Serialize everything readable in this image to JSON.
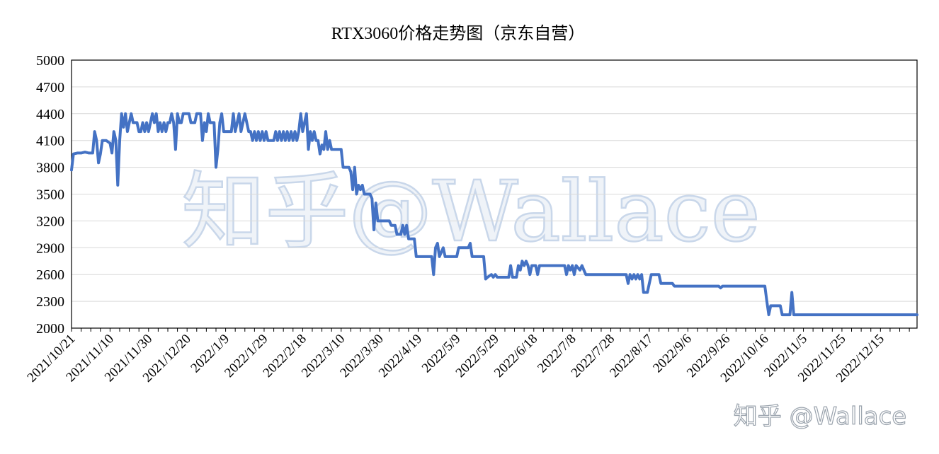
{
  "watermark": {
    "center_text": "知乎@Wallace",
    "corner_text": "知乎 @Wallace"
  },
  "colors": {
    "line": "#4472c4",
    "grid": "#d9d9d9",
    "axis": "#000000"
  },
  "chart_data": {
    "type": "line",
    "title": "RTX3060价格走势图（京东自营）",
    "xlabel": "",
    "ylabel": "",
    "ylim": [
      2000,
      5000
    ],
    "yticks": [
      2000,
      2300,
      2600,
      2900,
      3200,
      3500,
      3800,
      4100,
      4400,
      4700,
      5000
    ],
    "xlim": [
      "2021-10-21",
      "2023-01-03"
    ],
    "xticks": [
      {
        "date": "2021-10-21",
        "label": "2021/10/21"
      },
      {
        "date": "2021-11-10",
        "label": "2021/11/10"
      },
      {
        "date": "2021-11-30",
        "label": "2021/11/30"
      },
      {
        "date": "2021-12-20",
        "label": "2021/12/20"
      },
      {
        "date": "2022-01-09",
        "label": "2022/1/9"
      },
      {
        "date": "2022-01-29",
        "label": "2022/1/29"
      },
      {
        "date": "2022-02-18",
        "label": "2022/2/18"
      },
      {
        "date": "2022-03-10",
        "label": "2022/3/10"
      },
      {
        "date": "2022-03-30",
        "label": "2022/3/30"
      },
      {
        "date": "2022-04-19",
        "label": "2022/4/19"
      },
      {
        "date": "2022-05-09",
        "label": "2022/5/9"
      },
      {
        "date": "2022-05-29",
        "label": "2022/5/29"
      },
      {
        "date": "2022-06-18",
        "label": "2022/6/18"
      },
      {
        "date": "2022-07-08",
        "label": "2022/7/8"
      },
      {
        "date": "2022-07-28",
        "label": "2022/7/28"
      },
      {
        "date": "2022-08-17",
        "label": "2022/8/17"
      },
      {
        "date": "2022-09-06",
        "label": "2022/9/6"
      },
      {
        "date": "2022-09-26",
        "label": "2022/9/26"
      },
      {
        "date": "2022-10-16",
        "label": "2022/10/16"
      },
      {
        "date": "2022-11-05",
        "label": "2022/11/5"
      },
      {
        "date": "2022-11-25",
        "label": "2022/11/25"
      },
      {
        "date": "2022-12-15",
        "label": "2022/12/15"
      }
    ],
    "grid": true,
    "legend": "none",
    "series": [
      {
        "points": [
          [
            "2021-10-21",
            3770
          ],
          [
            "2021-10-22",
            3950
          ],
          [
            "2021-10-24",
            3960
          ],
          [
            "2021-10-26",
            3960
          ],
          [
            "2021-10-28",
            3970
          ],
          [
            "2021-10-30",
            3960
          ],
          [
            "2021-11-01",
            3960
          ],
          [
            "2021-11-02",
            4200
          ],
          [
            "2021-11-03",
            4100
          ],
          [
            "2021-11-04",
            3850
          ],
          [
            "2021-11-05",
            3950
          ],
          [
            "2021-11-06",
            4100
          ],
          [
            "2021-11-08",
            4100
          ],
          [
            "2021-11-10",
            4070
          ],
          [
            "2021-11-11",
            3960
          ],
          [
            "2021-11-12",
            4200
          ],
          [
            "2021-11-13",
            4100
          ],
          [
            "2021-11-14",
            3600
          ],
          [
            "2021-11-15",
            4100
          ],
          [
            "2021-11-16",
            4400
          ],
          [
            "2021-11-17",
            4250
          ],
          [
            "2021-11-18",
            4400
          ],
          [
            "2021-11-19",
            4200
          ],
          [
            "2021-11-20",
            4300
          ],
          [
            "2021-11-21",
            4400
          ],
          [
            "2021-11-22",
            4300
          ],
          [
            "2021-11-24",
            4300
          ],
          [
            "2021-11-25",
            4200
          ],
          [
            "2021-11-26",
            4200
          ],
          [
            "2021-11-27",
            4300
          ],
          [
            "2021-11-28",
            4200
          ],
          [
            "2021-11-29",
            4300
          ],
          [
            "2021-11-30",
            4200
          ],
          [
            "2021-12-01",
            4300
          ],
          [
            "2021-12-02",
            4400
          ],
          [
            "2021-12-03",
            4300
          ],
          [
            "2021-12-04",
            4400
          ],
          [
            "2021-12-05",
            4200
          ],
          [
            "2021-12-06",
            4300
          ],
          [
            "2021-12-07",
            4200
          ],
          [
            "2021-12-08",
            4300
          ],
          [
            "2021-12-09",
            4200
          ],
          [
            "2021-12-10",
            4300
          ],
          [
            "2021-12-11",
            4300
          ],
          [
            "2021-12-12",
            4400
          ],
          [
            "2021-12-13",
            4300
          ],
          [
            "2021-12-14",
            4000
          ],
          [
            "2021-12-15",
            4400
          ],
          [
            "2021-12-16",
            4300
          ],
          [
            "2021-12-17",
            4300
          ],
          [
            "2021-12-18",
            4400
          ],
          [
            "2021-12-21",
            4400
          ],
          [
            "2021-12-22",
            4300
          ],
          [
            "2021-12-24",
            4300
          ],
          [
            "2021-12-25",
            4400
          ],
          [
            "2021-12-27",
            4400
          ],
          [
            "2021-12-28",
            4100
          ],
          [
            "2021-12-29",
            4300
          ],
          [
            "2021-12-30",
            4200
          ],
          [
            "2021-12-31",
            4400
          ],
          [
            "2022-01-01",
            4300
          ],
          [
            "2022-01-03",
            4300
          ],
          [
            "2022-01-04",
            3800
          ],
          [
            "2022-01-05",
            4000
          ],
          [
            "2022-01-06",
            4300
          ],
          [
            "2022-01-07",
            4400
          ],
          [
            "2022-01-08",
            4200
          ],
          [
            "2022-01-12",
            4200
          ],
          [
            "2022-01-13",
            4400
          ],
          [
            "2022-01-14",
            4200
          ],
          [
            "2022-01-15",
            4300
          ],
          [
            "2022-01-16",
            4400
          ],
          [
            "2022-01-17",
            4200
          ],
          [
            "2022-01-18",
            4300
          ],
          [
            "2022-01-19",
            4400
          ],
          [
            "2022-01-20",
            4300
          ],
          [
            "2022-01-21",
            4200
          ],
          [
            "2022-01-22",
            4200
          ],
          [
            "2022-01-23",
            4100
          ],
          [
            "2022-01-24",
            4200
          ],
          [
            "2022-01-25",
            4100
          ],
          [
            "2022-01-26",
            4200
          ],
          [
            "2022-01-27",
            4100
          ],
          [
            "2022-01-28",
            4200
          ],
          [
            "2022-01-29",
            4100
          ],
          [
            "2022-01-30",
            4200
          ],
          [
            "2022-01-31",
            4100
          ],
          [
            "2022-02-03",
            4100
          ],
          [
            "2022-02-04",
            4200
          ],
          [
            "2022-02-05",
            4100
          ],
          [
            "2022-02-06",
            4200
          ],
          [
            "2022-02-07",
            4100
          ],
          [
            "2022-02-08",
            4200
          ],
          [
            "2022-02-09",
            4100
          ],
          [
            "2022-02-10",
            4200
          ],
          [
            "2022-02-11",
            4100
          ],
          [
            "2022-02-12",
            4200
          ],
          [
            "2022-02-13",
            4100
          ],
          [
            "2022-02-14",
            4200
          ],
          [
            "2022-02-15",
            4100
          ],
          [
            "2022-02-16",
            4200
          ],
          [
            "2022-02-17",
            4400
          ],
          [
            "2022-02-18",
            4200
          ],
          [
            "2022-02-19",
            4300
          ],
          [
            "2022-02-20",
            4400
          ],
          [
            "2022-02-21",
            4000
          ],
          [
            "2022-02-22",
            4200
          ],
          [
            "2022-02-23",
            4100
          ],
          [
            "2022-02-24",
            4200
          ],
          [
            "2022-02-25",
            4100
          ],
          [
            "2022-02-26",
            4100
          ],
          [
            "2022-02-27",
            3950
          ],
          [
            "2022-02-28",
            4050
          ],
          [
            "2022-03-01",
            4000
          ],
          [
            "2022-03-02",
            4200
          ],
          [
            "2022-03-03",
            4000
          ],
          [
            "2022-03-04",
            4100
          ],
          [
            "2022-03-05",
            4000
          ],
          [
            "2022-03-10",
            4000
          ],
          [
            "2022-03-11",
            3800
          ],
          [
            "2022-03-14",
            3800
          ],
          [
            "2022-03-15",
            3750
          ],
          [
            "2022-03-16",
            3550
          ],
          [
            "2022-03-17",
            3800
          ],
          [
            "2022-03-18",
            3500
          ],
          [
            "2022-03-19",
            3600
          ],
          [
            "2022-03-20",
            3550
          ],
          [
            "2022-03-21",
            3600
          ],
          [
            "2022-03-22",
            3500
          ],
          [
            "2022-03-25",
            3500
          ],
          [
            "2022-03-26",
            3450
          ],
          [
            "2022-03-27",
            3100
          ],
          [
            "2022-03-28",
            3400
          ],
          [
            "2022-03-29",
            3200
          ],
          [
            "2022-04-04",
            3200
          ],
          [
            "2022-04-05",
            3150
          ],
          [
            "2022-04-07",
            3150
          ],
          [
            "2022-04-08",
            3050
          ],
          [
            "2022-04-10",
            3050
          ],
          [
            "2022-04-11",
            3150
          ],
          [
            "2022-04-12",
            3050
          ],
          [
            "2022-04-13",
            3150
          ],
          [
            "2022-04-14",
            3000
          ],
          [
            "2022-04-17",
            3000
          ],
          [
            "2022-04-18",
            2800
          ],
          [
            "2022-04-26",
            2800
          ],
          [
            "2022-04-27",
            2600
          ],
          [
            "2022-04-28",
            2900
          ],
          [
            "2022-04-29",
            2950
          ],
          [
            "2022-04-30",
            2800
          ],
          [
            "2022-05-02",
            2900
          ],
          [
            "2022-05-03",
            2800
          ],
          [
            "2022-05-09",
            2800
          ],
          [
            "2022-05-10",
            2900
          ],
          [
            "2022-05-15",
            2900
          ],
          [
            "2022-05-16",
            2950
          ],
          [
            "2022-05-17",
            2800
          ],
          [
            "2022-05-23",
            2800
          ],
          [
            "2022-05-24",
            2550
          ],
          [
            "2022-05-25",
            2570
          ],
          [
            "2022-05-27",
            2600
          ],
          [
            "2022-05-28",
            2570
          ],
          [
            "2022-05-29",
            2600
          ],
          [
            "2022-05-30",
            2570
          ],
          [
            "2022-06-05",
            2570
          ],
          [
            "2022-06-06",
            2700
          ],
          [
            "2022-06-07",
            2570
          ],
          [
            "2022-06-09",
            2570
          ],
          [
            "2022-06-10",
            2700
          ],
          [
            "2022-06-11",
            2650
          ],
          [
            "2022-06-12",
            2750
          ],
          [
            "2022-06-13",
            2700
          ],
          [
            "2022-06-14",
            2750
          ],
          [
            "2022-06-15",
            2700
          ],
          [
            "2022-06-16",
            2600
          ],
          [
            "2022-06-17",
            2700
          ],
          [
            "2022-06-19",
            2700
          ],
          [
            "2022-06-20",
            2600
          ],
          [
            "2022-06-21",
            2700
          ],
          [
            "2022-07-04",
            2700
          ],
          [
            "2022-07-05",
            2600
          ],
          [
            "2022-07-06",
            2700
          ],
          [
            "2022-07-07",
            2650
          ],
          [
            "2022-07-08",
            2700
          ],
          [
            "2022-07-09",
            2600
          ],
          [
            "2022-07-10",
            2700
          ],
          [
            "2022-07-12",
            2650
          ],
          [
            "2022-07-13",
            2700
          ],
          [
            "2022-07-14",
            2650
          ],
          [
            "2022-07-15",
            2600
          ],
          [
            "2022-08-05",
            2600
          ],
          [
            "2022-08-06",
            2500
          ],
          [
            "2022-08-07",
            2600
          ],
          [
            "2022-08-08",
            2550
          ],
          [
            "2022-08-09",
            2600
          ],
          [
            "2022-08-10",
            2550
          ],
          [
            "2022-08-11",
            2600
          ],
          [
            "2022-08-12",
            2550
          ],
          [
            "2022-08-13",
            2600
          ],
          [
            "2022-08-14",
            2400
          ],
          [
            "2022-08-16",
            2400
          ],
          [
            "2022-08-17",
            2500
          ],
          [
            "2022-08-18",
            2600
          ],
          [
            "2022-08-22",
            2600
          ],
          [
            "2022-08-23",
            2500
          ],
          [
            "2022-08-29",
            2500
          ],
          [
            "2022-08-30",
            2470
          ],
          [
            "2022-09-22",
            2470
          ],
          [
            "2022-09-23",
            2450
          ],
          [
            "2022-09-24",
            2470
          ],
          [
            "2022-10-16",
            2470
          ],
          [
            "2022-10-17",
            2300
          ],
          [
            "2022-10-18",
            2150
          ],
          [
            "2022-10-19",
            2250
          ],
          [
            "2022-10-24",
            2250
          ],
          [
            "2022-10-25",
            2150
          ],
          [
            "2022-10-29",
            2150
          ],
          [
            "2022-10-30",
            2400
          ],
          [
            "2022-10-31",
            2150
          ],
          [
            "2022-11-01",
            2150
          ],
          [
            "2023-01-03",
            2150
          ]
        ]
      }
    ]
  }
}
